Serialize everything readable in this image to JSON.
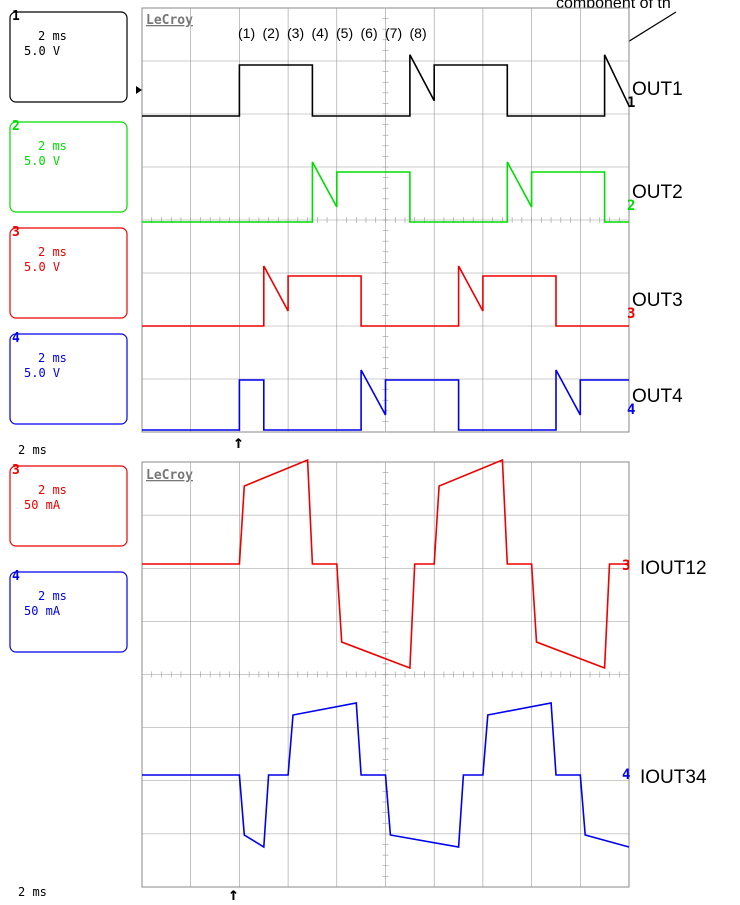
{
  "header_annotation": "component of th",
  "brand": "LeCroy",
  "phase_markers": [
    "(1)",
    "(2)",
    "(3)",
    "(4)",
    "(5)",
    "(6)",
    "(7)",
    "(8)"
  ],
  "top_timebase": "2 ms",
  "bottom_timebase": "2 ms",
  "top_channels": [
    {
      "id": "1",
      "label": "OUT1",
      "color": "#000000",
      "time": "2 ms",
      "scale": "5.0 V"
    },
    {
      "id": "2",
      "label": "OUT2",
      "color": "#00dd00",
      "time": "2 ms",
      "scale": "5.0 V"
    },
    {
      "id": "3",
      "label": "OUT3",
      "color": "#ee0000",
      "time": "2 ms",
      "scale": "5.0 V"
    },
    {
      "id": "4",
      "label": "OUT4",
      "color": "#0000ee",
      "time": "2 ms",
      "scale": "5.0 V"
    }
  ],
  "bottom_channels": [
    {
      "id": "3",
      "label": "IOUT12",
      "color": "#ee0000",
      "time": "2 ms",
      "scale": "50 mA"
    },
    {
      "id": "4",
      "label": "IOUT34",
      "color": "#0000ee",
      "time": "2 ms",
      "scale": "50 mA"
    }
  ],
  "chart_data": [
    {
      "type": "line",
      "title": "",
      "x_divisions": 10,
      "y_divisions": 8,
      "series": [
        {
          "name": "OUT1",
          "x": [
            0,
            2,
            2,
            3.5,
            3.5,
            5.5,
            5.5,
            6,
            6,
            7.5,
            7.5,
            9.5,
            9.5,
            10
          ],
          "y": [
            0,
            0,
            1,
            1,
            0,
            0,
            1.2,
            0.3,
            1,
            1,
            0,
            0,
            1.2,
            0.2
          ]
        },
        {
          "name": "OUT2",
          "x": [
            0,
            3.5,
            3.5,
            4,
            4,
            5.5,
            5.5,
            7.5,
            7.5,
            8,
            8,
            9.5,
            9.5,
            10
          ],
          "y": [
            0,
            0,
            1.2,
            0.3,
            1,
            1,
            0,
            0,
            1.2,
            0.3,
            1,
            1,
            0,
            0
          ]
        },
        {
          "name": "OUT3",
          "x": [
            0,
            2.5,
            2.5,
            3,
            3,
            4.5,
            4.5,
            6.5,
            6.5,
            7,
            7,
            8.5,
            8.5,
            10
          ],
          "y": [
            0,
            0,
            1.2,
            0.3,
            1,
            1,
            0,
            0,
            1.2,
            0.3,
            1,
            1,
            0,
            0
          ]
        },
        {
          "name": "OUT4",
          "x": [
            0,
            2,
            2,
            2.5,
            2.5,
            4.5,
            4.5,
            5,
            5,
            6.5,
            6.5,
            8.5,
            8.5,
            9,
            9,
            10
          ],
          "y": [
            0,
            0,
            1,
            1,
            0,
            0,
            1.2,
            0.3,
            1,
            1,
            0,
            0,
            1.2,
            0.3,
            1,
            1
          ]
        }
      ]
    },
    {
      "type": "line",
      "title": "",
      "x_divisions": 10,
      "y_divisions": 8,
      "series": [
        {
          "name": "IOUT12",
          "x": [
            0,
            2,
            2.1,
            3.4,
            3.5,
            4,
            4.1,
            5.5,
            5.6,
            6,
            6.1,
            7.4,
            7.5,
            8,
            8.1,
            9.5,
            9.6,
            10
          ],
          "y": [
            0,
            0,
            1.5,
            2,
            0,
            0,
            -1.5,
            -2,
            0,
            0,
            1.5,
            2,
            0,
            0,
            -1.5,
            -2,
            0,
            0
          ]
        },
        {
          "name": "IOUT34",
          "x": [
            0,
            2,
            2.1,
            2.5,
            2.6,
            3,
            3.1,
            4.4,
            4.5,
            5,
            5.1,
            6.5,
            6.6,
            7,
            7.1,
            8.4,
            8.5,
            9,
            9.1,
            10
          ],
          "y": [
            0,
            0,
            -1.5,
            -1.8,
            0,
            0,
            1.5,
            1.8,
            0,
            0,
            -1.5,
            -1.8,
            0,
            0,
            1.5,
            1.8,
            0,
            0,
            -1.5,
            -1.8
          ]
        }
      ]
    }
  ]
}
